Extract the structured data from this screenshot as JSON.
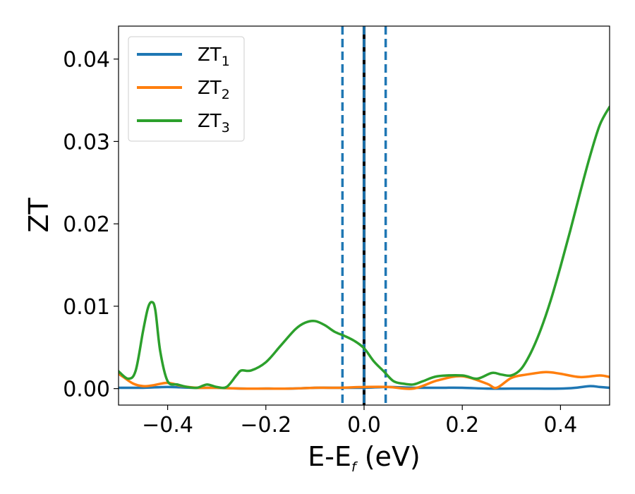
{
  "chart_data": {
    "type": "line",
    "xlabel_base": "E-E",
    "xlabel_sub": "f",
    "xlabel_unit": " (eV)",
    "ylabel": "ZT",
    "xlim": [
      -0.5,
      0.5
    ],
    "ylim": [
      -0.002,
      0.044
    ],
    "xticks": [
      -0.4,
      -0.2,
      0.0,
      0.2,
      0.4
    ],
    "xtick_labels": [
      "−0.4",
      "−0.2",
      "0.0",
      "0.2",
      "0.4"
    ],
    "yticks": [
      0.0,
      0.01,
      0.02,
      0.03,
      0.04
    ],
    "ytick_labels": [
      "0.00",
      "0.01",
      "0.02",
      "0.03",
      "0.04"
    ],
    "grid": false,
    "legend_position": "top-left",
    "vlines": [
      {
        "x": -0.044,
        "style": "dashed",
        "color": "#1f77b4"
      },
      {
        "x": 0.0,
        "style": "solid",
        "color": "#000000"
      },
      {
        "x": 0.0,
        "style": "dashed",
        "color": "#1f77b4"
      },
      {
        "x": 0.044,
        "style": "dashed",
        "color": "#1f77b4"
      }
    ],
    "series": [
      {
        "name_base": "ZT",
        "name_sub": "1",
        "color": "#1f77b4",
        "x": [
          -0.5,
          -0.45,
          -0.4,
          -0.35,
          -0.3,
          -0.25,
          -0.2,
          -0.15,
          -0.1,
          -0.05,
          0.0,
          0.05,
          0.1,
          0.15,
          0.2,
          0.25,
          0.3,
          0.35,
          0.4,
          0.43,
          0.46,
          0.48,
          0.5
        ],
        "y": [
          0.0001,
          0.0001,
          0.0002,
          0.0001,
          0.0001,
          0.0,
          0.0,
          0.0,
          0.0001,
          0.0001,
          0.0001,
          0.0002,
          0.0001,
          0.0001,
          0.0001,
          0.0,
          0.0,
          0.0,
          0.0,
          0.0001,
          0.0003,
          0.0002,
          0.0001
        ]
      },
      {
        "name_base": "ZT",
        "name_sub": "2",
        "color": "#ff7f0e",
        "x": [
          -0.5,
          -0.49,
          -0.47,
          -0.45,
          -0.43,
          -0.4,
          -0.37,
          -0.34,
          -0.3,
          -0.25,
          -0.2,
          -0.15,
          -0.1,
          -0.05,
          0.0,
          0.05,
          0.1,
          0.15,
          0.2,
          0.25,
          0.27,
          0.3,
          0.33,
          0.37,
          0.4,
          0.44,
          0.48,
          0.5
        ],
        "y": [
          0.0018,
          0.0014,
          0.0006,
          0.0003,
          0.0004,
          0.0007,
          0.0003,
          0.0001,
          0.0001,
          0.0,
          0.0,
          0.0,
          0.0001,
          0.0001,
          0.0002,
          0.0002,
          0.0,
          0.001,
          0.0015,
          0.0006,
          0.0001,
          0.0013,
          0.0017,
          0.002,
          0.0018,
          0.0014,
          0.0016,
          0.0014
        ]
      },
      {
        "name_base": "ZT",
        "name_sub": "3",
        "color": "#2ca02c",
        "x": [
          -0.5,
          -0.48,
          -0.465,
          -0.45,
          -0.44,
          -0.432,
          -0.425,
          -0.415,
          -0.4,
          -0.38,
          -0.36,
          -0.34,
          -0.32,
          -0.3,
          -0.28,
          -0.26,
          -0.25,
          -0.23,
          -0.2,
          -0.17,
          -0.14,
          -0.12,
          -0.1,
          -0.08,
          -0.06,
          -0.04,
          -0.02,
          0.0,
          0.02,
          0.04,
          0.06,
          0.08,
          0.1,
          0.12,
          0.15,
          0.2,
          0.23,
          0.26,
          0.28,
          0.3,
          0.32,
          0.34,
          0.36,
          0.38,
          0.4,
          0.42,
          0.44,
          0.46,
          0.48,
          0.5
        ],
        "y": [
          0.0021,
          0.0012,
          0.0022,
          0.007,
          0.0098,
          0.0105,
          0.0095,
          0.0045,
          0.0009,
          0.0005,
          0.0002,
          0.0001,
          0.0005,
          0.0002,
          0.0002,
          0.0016,
          0.0022,
          0.0022,
          0.0032,
          0.0052,
          0.0072,
          0.008,
          0.0082,
          0.0077,
          0.0069,
          0.0064,
          0.0058,
          0.0049,
          0.0033,
          0.0021,
          0.0009,
          0.0006,
          0.0005,
          0.0009,
          0.0015,
          0.0016,
          0.0012,
          0.0019,
          0.0017,
          0.0016,
          0.0024,
          0.0044,
          0.0072,
          0.0107,
          0.0148,
          0.0192,
          0.0238,
          0.0282,
          0.032,
          0.0342
        ]
      }
    ]
  }
}
